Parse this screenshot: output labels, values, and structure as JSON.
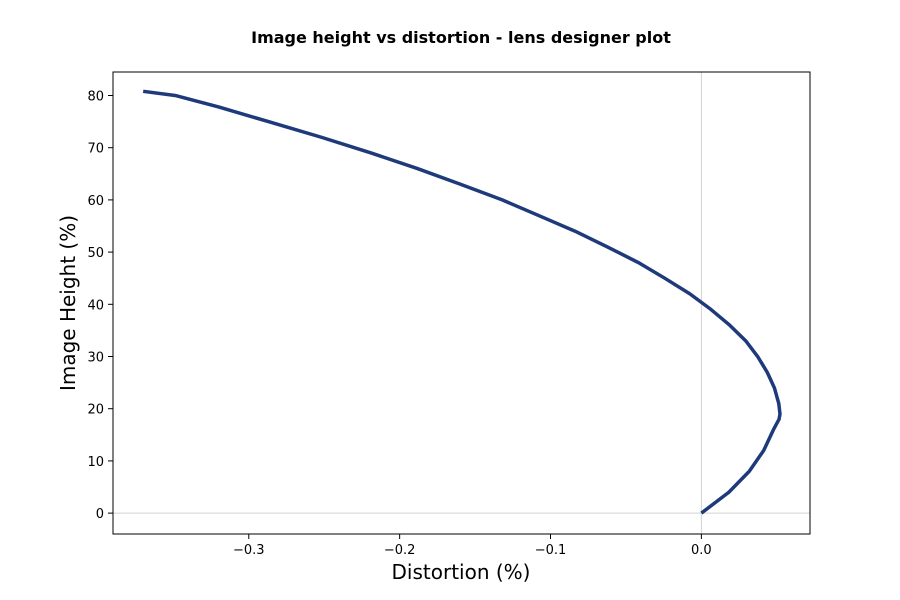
{
  "chart_data": {
    "type": "line",
    "title": "Image height vs distortion - lens designer plot",
    "xlabel": "Distortion (%)",
    "ylabel": "Image Height (%)",
    "xlim": [
      -0.39,
      0.072
    ],
    "ylim": [
      -4,
      84.5
    ],
    "xticks": [
      -0.3,
      -0.2,
      -0.1,
      0.0
    ],
    "xtick_labels": [
      "−0.3",
      "−0.2",
      "−0.1",
      "0.0"
    ],
    "yticks": [
      0,
      10,
      20,
      30,
      40,
      50,
      60,
      70,
      80
    ],
    "ytick_labels": [
      "0",
      "10",
      "20",
      "30",
      "40",
      "50",
      "60",
      "70",
      "80"
    ],
    "reference_lines": {
      "x": 0,
      "y": 0,
      "color": "#d3d3d3"
    },
    "grid": false,
    "series": [
      {
        "color": "#1f3a7a",
        "x": [
          0.0,
          0.0182,
          0.0317,
          0.0413,
          0.0478,
          0.0515,
          0.0521,
          0.0513,
          0.0484,
          0.0436,
          0.0373,
          0.0294,
          0.0188,
          0.0064,
          -0.0076,
          -0.0243,
          -0.0418,
          -0.0623,
          -0.0837,
          -0.1078,
          -0.132,
          -0.1597,
          -0.1882,
          -0.219,
          -0.2519,
          -0.287,
          -0.32,
          -0.3488,
          -0.37
        ],
        "y": [
          0.0,
          4.0,
          8.0,
          12.0,
          16.0,
          18.0,
          19.0,
          21.0,
          24.0,
          27.0,
          30.0,
          33.0,
          36.0,
          39.0,
          42.0,
          45.0,
          48.0,
          51.0,
          54.0,
          57.0,
          60.0,
          63.0,
          66.0,
          69.0,
          72.0,
          75.0,
          77.8,
          80.0,
          80.8
        ]
      }
    ]
  }
}
